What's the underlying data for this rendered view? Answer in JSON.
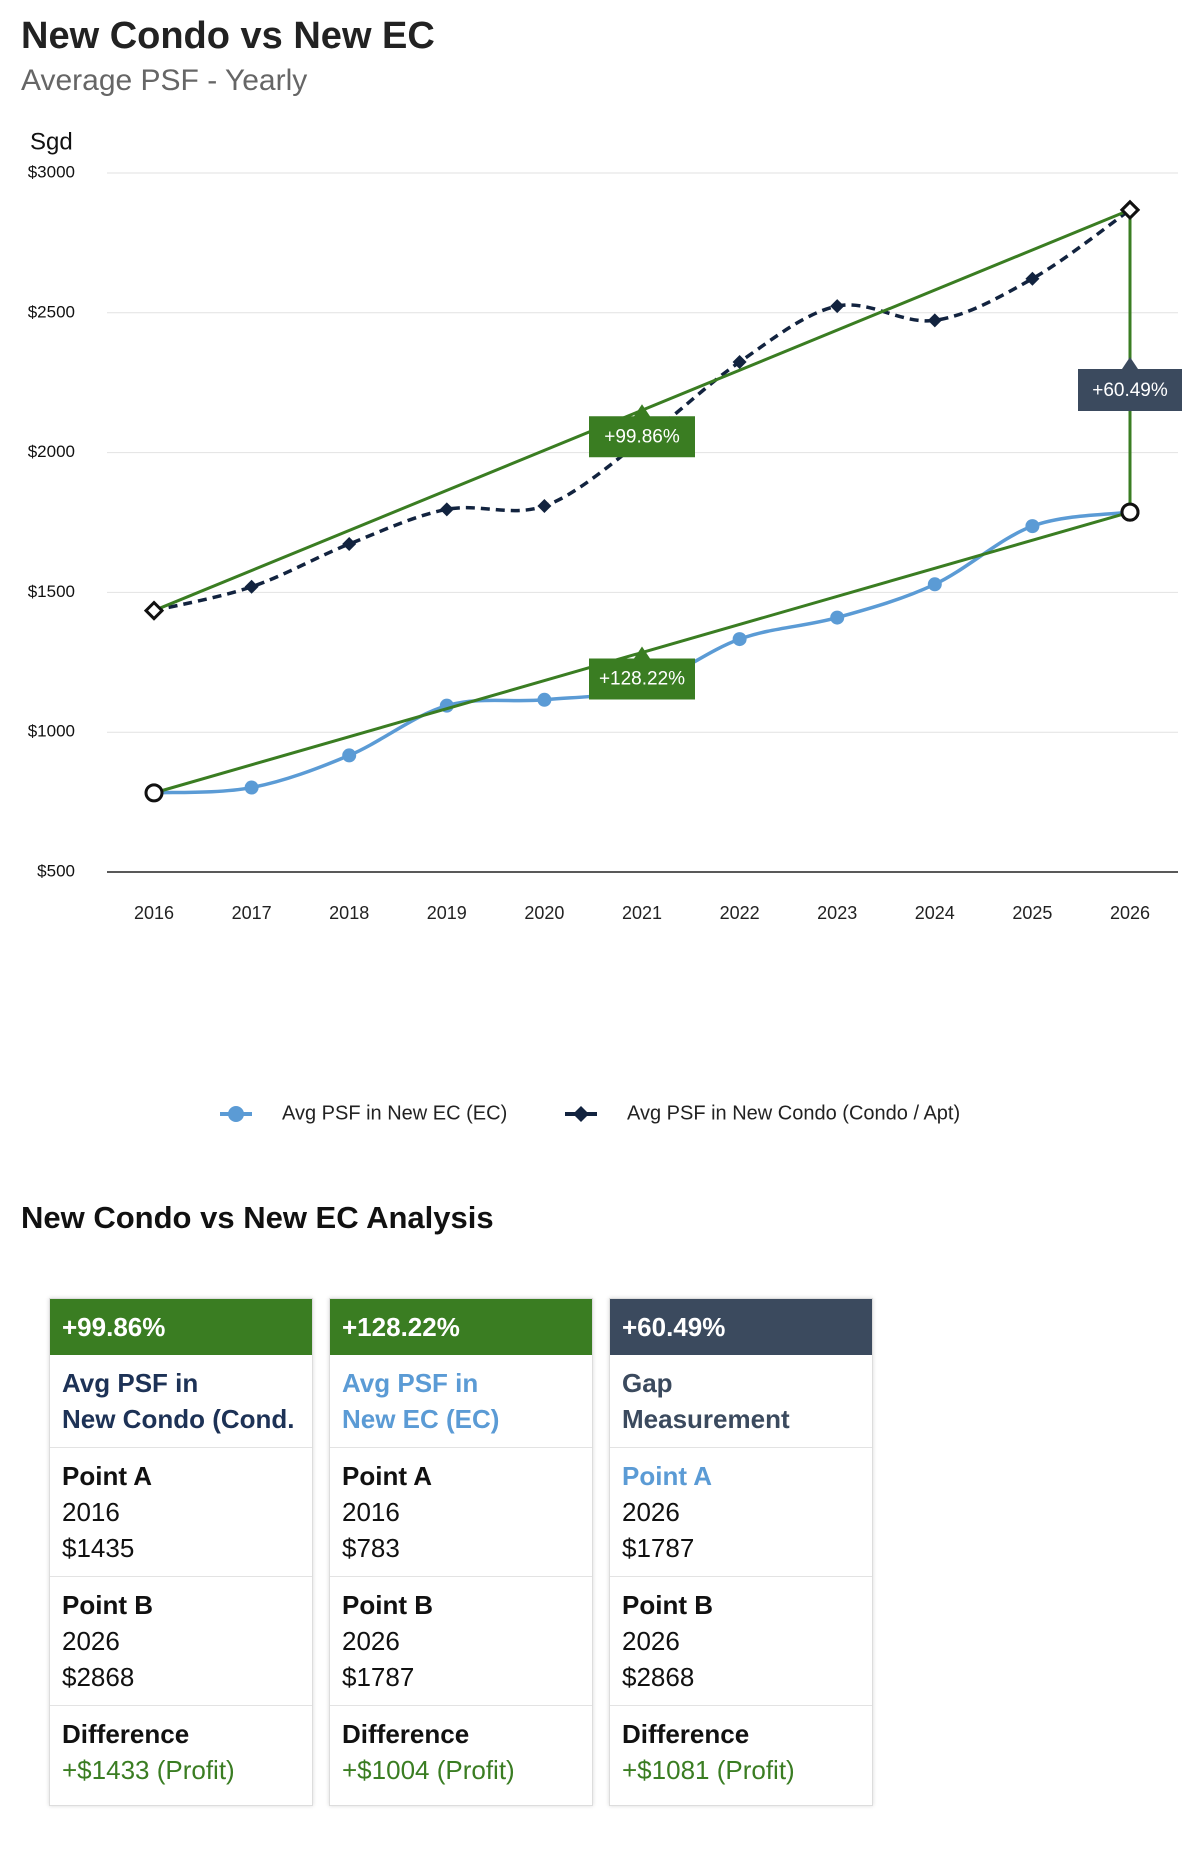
{
  "chart_data": {
    "type": "line",
    "title": "New Condo vs New EC",
    "subtitle": "Average PSF - Yearly",
    "y_label": "Sgd",
    "categories": [
      "2016",
      "2017",
      "2018",
      "2019",
      "2020",
      "2021",
      "2022",
      "2023",
      "2024",
      "2025",
      "2026"
    ],
    "series": [
      {
        "name": "Avg PSF in New EC (EC)",
        "color": "#5b9bd5",
        "marker": "circle",
        "dashed": false,
        "values": [
          783,
          802,
          917,
          1095,
          1116,
          1160,
          1333,
          1410,
          1529,
          1737,
          1787
        ],
        "trend": {
          "label": "+128.22%",
          "color": "#3a7d22"
        }
      },
      {
        "name": "Avg PSF in New Condo (Condo / Apt)",
        "color": "#12233f",
        "marker": "diamond",
        "dashed": true,
        "values": [
          1435,
          1520,
          1673,
          1797,
          1809,
          2043,
          2324,
          2524,
          2473,
          2622,
          2868
        ],
        "trend": {
          "label": "+99.86%",
          "color": "#3a7d22"
        }
      }
    ],
    "gap": {
      "label": "+60.49%",
      "color": "#3a7d22",
      "label_color": "#3b4a5e"
    },
    "ylim": [
      500,
      3000
    ],
    "yticks": [
      {
        "value": 500,
        "label": "$500"
      },
      {
        "value": 1000,
        "label": "$1000"
      },
      {
        "value": 1500,
        "label": "$1500"
      },
      {
        "value": 2000,
        "label": "$2000"
      },
      {
        "value": 2500,
        "label": "$2500"
      },
      {
        "value": 3000,
        "label": "$3000"
      }
    ],
    "grid": true,
    "legend": "bottom"
  },
  "analysis": {
    "title": "New Condo vs New EC Analysis",
    "cards": [
      {
        "header": "+99.86%",
        "title": [
          "Avg PSF in",
          "New Condo (Cond."
        ],
        "point_a": {
          "label": "Point A",
          "year": "2016",
          "value": "$1435"
        },
        "point_b": {
          "label": "Point B",
          "year": "2026",
          "value": "$2868"
        },
        "difference": {
          "label": "Difference",
          "value": "+$1433 (Profit)"
        }
      },
      {
        "header": "+128.22%",
        "title": [
          "Avg PSF in",
          "New EC (EC)"
        ],
        "point_a": {
          "label": "Point A",
          "year": "2016",
          "value": "$783"
        },
        "point_b": {
          "label": "Point B",
          "year": "2026",
          "value": "$1787"
        },
        "difference": {
          "label": "Difference",
          "value": "+$1004 (Profit)"
        }
      },
      {
        "header": "+60.49%",
        "title": [
          "Gap",
          "Measurement"
        ],
        "point_a": {
          "label": "Point A",
          "year": "2026",
          "value": "$1787"
        },
        "point_b": {
          "label": "Point B",
          "year": "2026",
          "value": "$2868"
        },
        "difference": {
          "label": "Difference",
          "value": "+$1081 (Profit)"
        }
      }
    ]
  }
}
